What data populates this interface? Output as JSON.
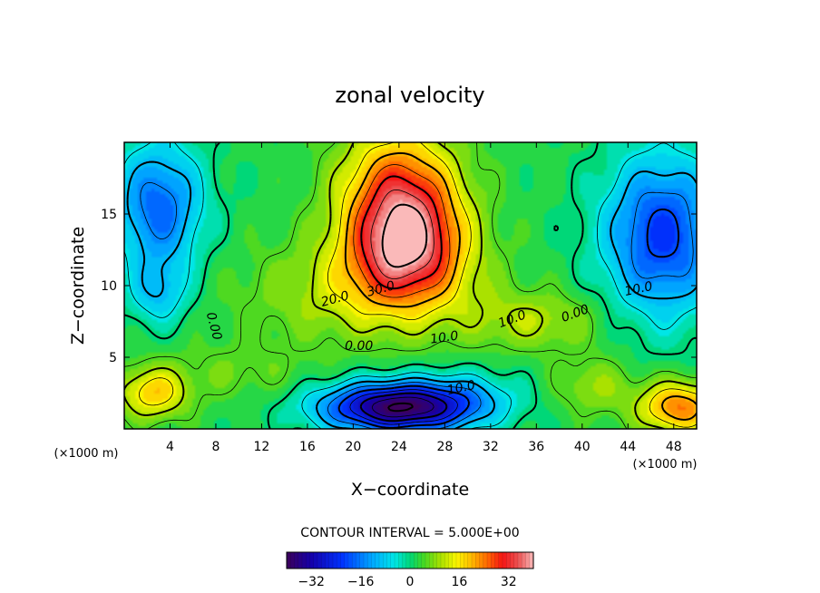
{
  "chart_data": {
    "type": "heatmap",
    "title": "zonal velocity",
    "xlabel": "X−coordinate",
    "ylabel": "Z−coordinate",
    "x_unit": "(×1000 m)",
    "z_unit": "(×1000 m)",
    "xlim": [
      0,
      50
    ],
    "ylim": [
      0,
      20
    ],
    "x_ticks": [
      4,
      8,
      12,
      16,
      20,
      24,
      28,
      32,
      36,
      40,
      44,
      48
    ],
    "y_ticks": [
      5,
      10,
      15
    ],
    "contour_interval_text": "CONTOUR INTERVAL = 5.000E+00",
    "contour_interval": 5,
    "colorbar": {
      "range": [
        -40,
        40
      ],
      "ticks": [
        -32,
        -16,
        0,
        16,
        32
      ]
    },
    "contour_labels": [
      {
        "text": "30.0",
        "x": 22.5,
        "y": 9.5,
        "rot": 15
      },
      {
        "text": "20.0",
        "x": 18.5,
        "y": 8.8,
        "rot": 15
      },
      {
        "text": "10.0",
        "x": 28.0,
        "y": 6.1,
        "rot": 8
      },
      {
        "text": "10.0",
        "x": 34.0,
        "y": 7.4,
        "rot": 20
      },
      {
        "text": "0.00",
        "x": 20.5,
        "y": 5.5,
        "rot": 0
      },
      {
        "text": "0.00",
        "x": 7.5,
        "y": 7.1,
        "rot": -75
      },
      {
        "text": "0.00",
        "x": 39.5,
        "y": 7.8,
        "rot": 20
      },
      {
        "text": "10.0",
        "x": 45.0,
        "y": 9.5,
        "rot": 12
      },
      {
        "text": "10.0",
        "x": 29.5,
        "y": 2.6,
        "rot": 12
      }
    ],
    "field_description": "Jet core ~35 near x=24,z=13; negative minimum ~-35 near x=24,z=1.5; negative regions near x=2-4 z=12-18 and x=44-50 z=12-16; positive near x=48 z=2.",
    "field_features": [
      {
        "x": 24.5,
        "z": 13.0,
        "sx": 5.0,
        "sz": 4.0,
        "amp": 36
      },
      {
        "x": 24.0,
        "z": 17.5,
        "sx": 5.0,
        "sz": 4.0,
        "amp": 18
      },
      {
        "x": 21.0,
        "z": 9.5,
        "sx": 10.0,
        "sz": 3.5,
        "amp": 9
      },
      {
        "x": 36.0,
        "z": 7.5,
        "sx": 6.0,
        "sz": 2.0,
        "amp": 8
      },
      {
        "x": 24.0,
        "z": 1.5,
        "sx": 6.5,
        "sz": 1.7,
        "amp": -42
      },
      {
        "x": 30.0,
        "z": 2.5,
        "sx": 5.0,
        "sz": 1.8,
        "amp": -6
      },
      {
        "x": 3.0,
        "z": 15.5,
        "sx": 3.8,
        "sz": 4.5,
        "amp": -20
      },
      {
        "x": 3.0,
        "z": 9.5,
        "sx": 2.5,
        "sz": 2.2,
        "amp": -10
      },
      {
        "x": 47.0,
        "z": 13.5,
        "sx": 5.0,
        "sz": 5.5,
        "amp": -24
      },
      {
        "x": 48.5,
        "z": 1.5,
        "sx": 3.5,
        "sz": 1.8,
        "amp": 22
      },
      {
        "x": 2.5,
        "z": 2.5,
        "sx": 3.0,
        "sz": 1.8,
        "amp": 16
      },
      {
        "x": 41.0,
        "z": 3.0,
        "sx": 3.5,
        "sz": 2.0,
        "amp": 7
      },
      {
        "x": 10.0,
        "z": 4.0,
        "sx": 6.0,
        "sz": 2.0,
        "amp": 4
      }
    ]
  },
  "colors": {
    "background": "#ffffff",
    "axis": "#000000",
    "contour": "#000000"
  }
}
